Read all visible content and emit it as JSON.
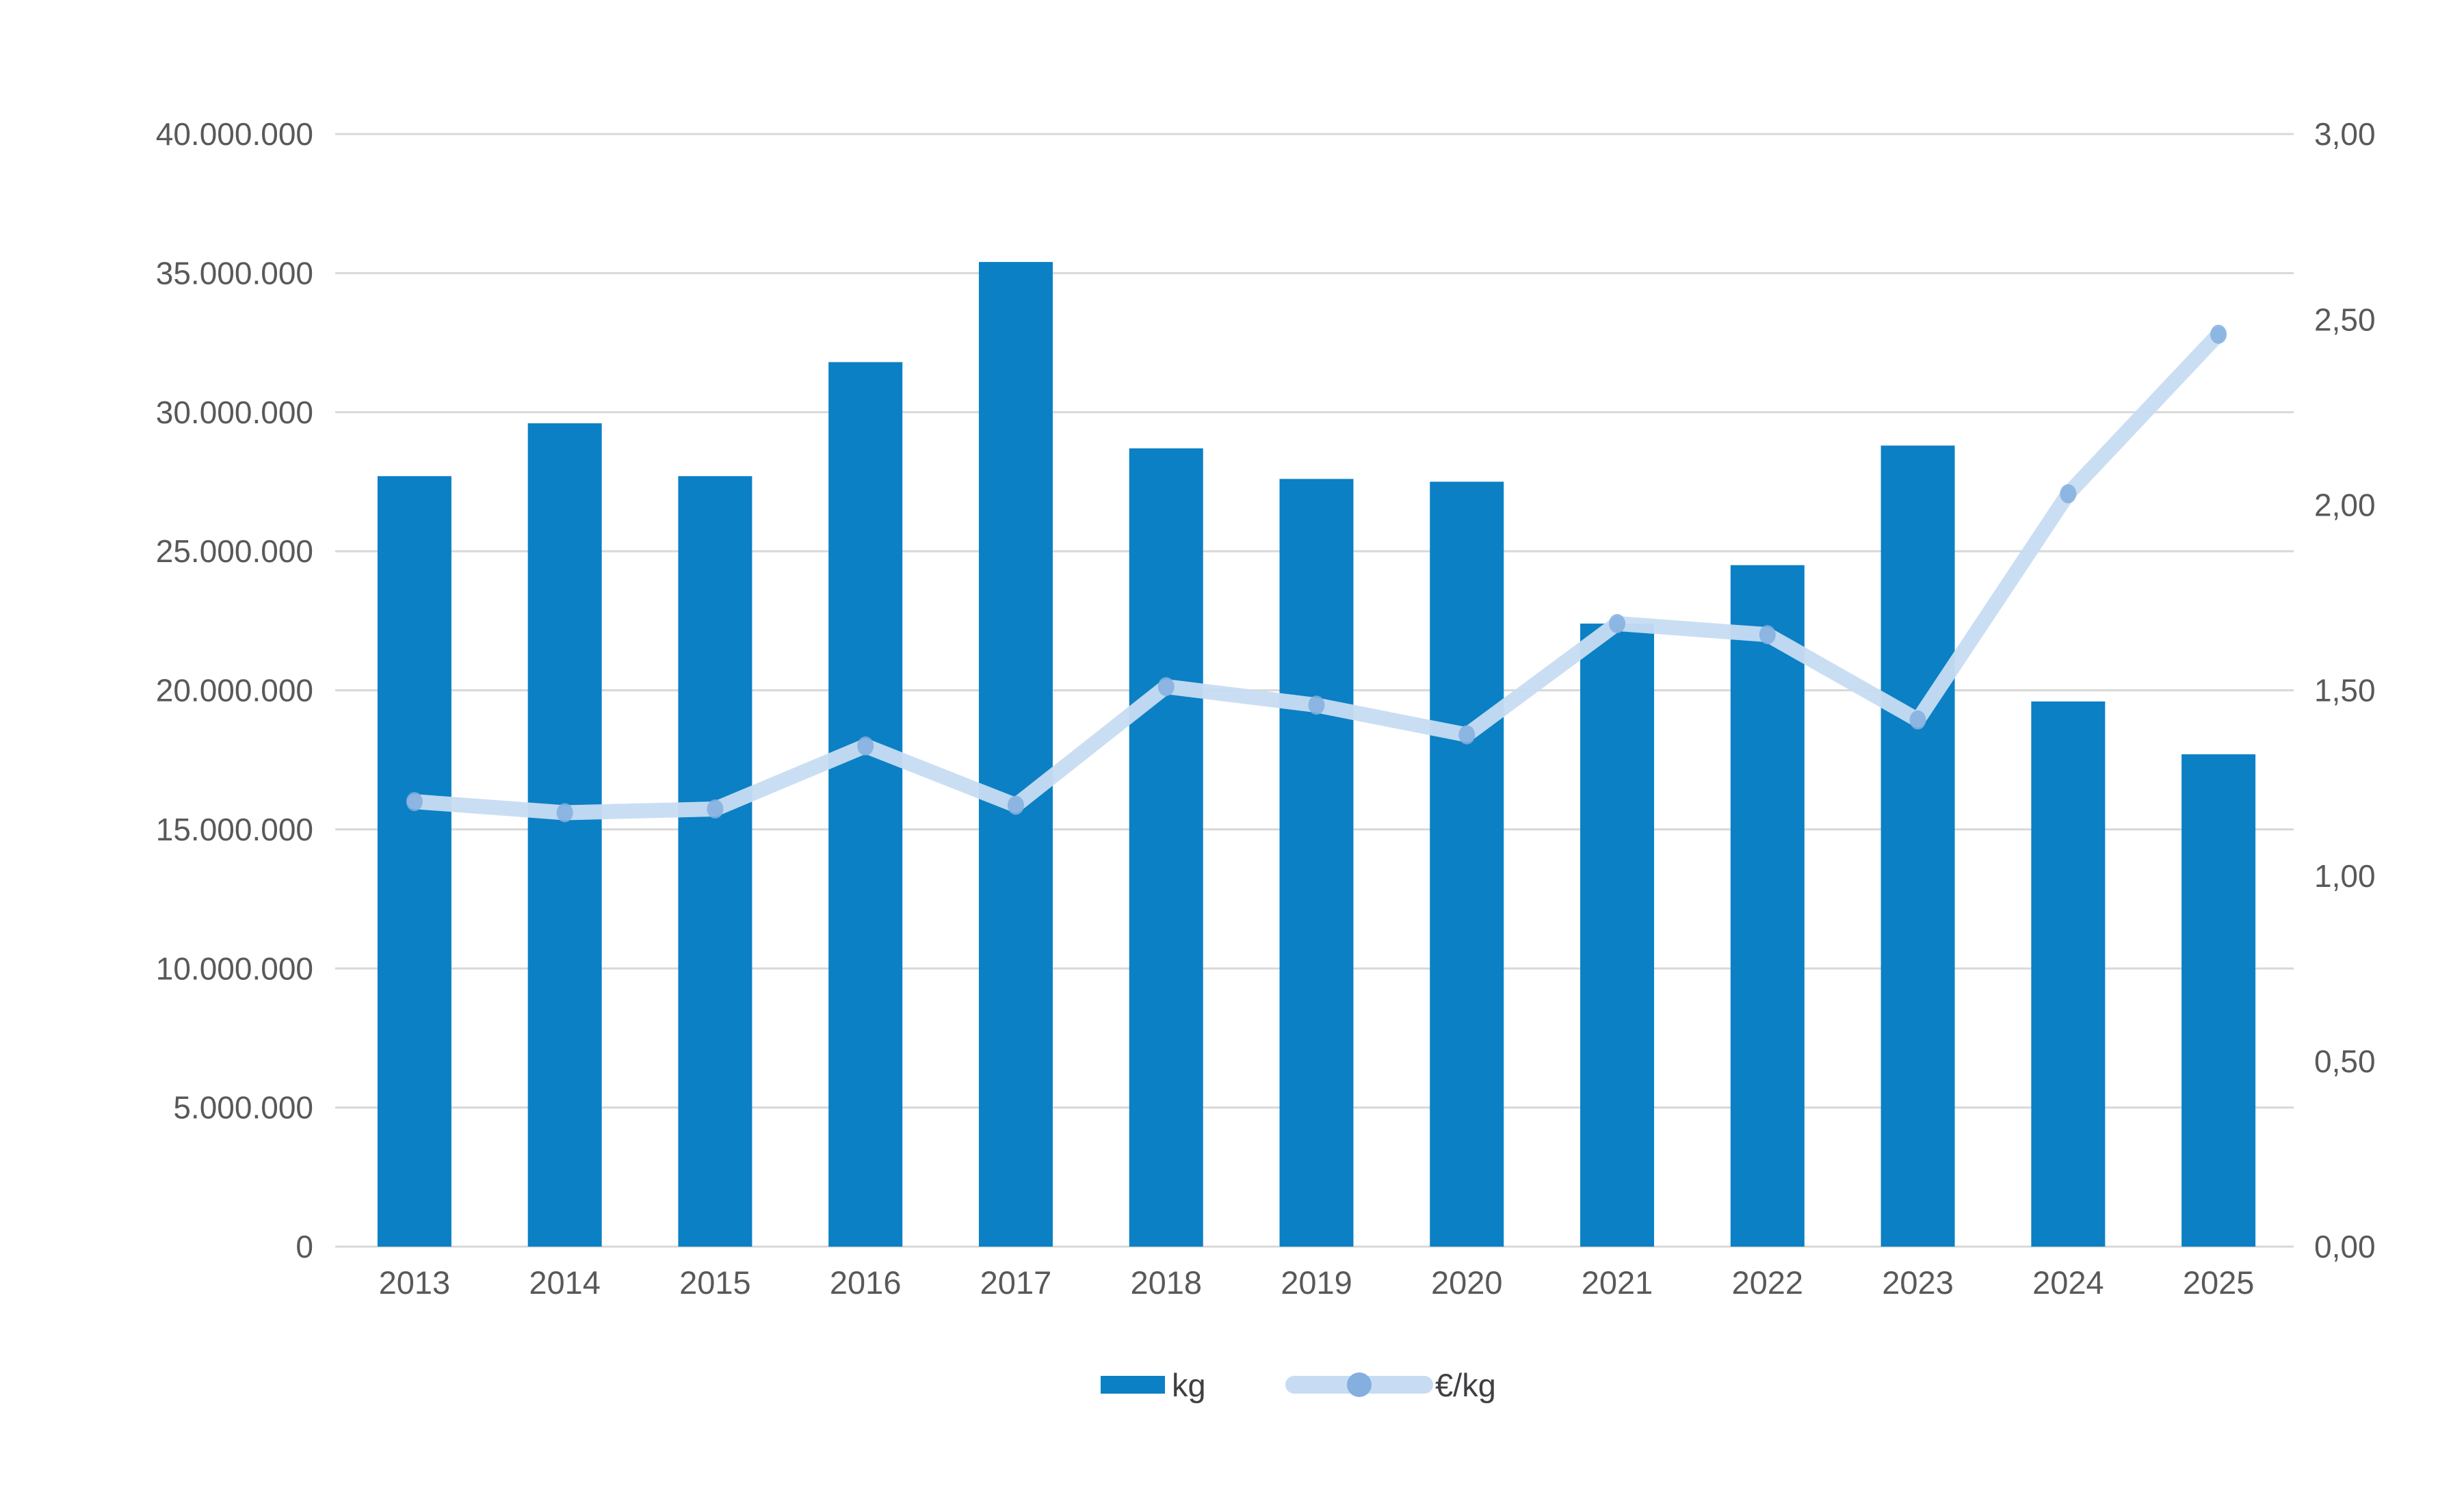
{
  "chart_data": {
    "type": "combo",
    "title": "",
    "categories": [
      "2013",
      "2014",
      "2015",
      "2016",
      "2017",
      "2018",
      "2019",
      "2020",
      "2021",
      "2022",
      "2023",
      "2024",
      "2025"
    ],
    "series": [
      {
        "name": "kg",
        "type": "bar",
        "axis": "left",
        "color": "#0b80c4",
        "values": [
          27700000,
          29600000,
          27700000,
          31800000,
          35400000,
          28700000,
          27600000,
          27500000,
          22400000,
          24500000,
          28800000,
          19600000,
          17700000
        ]
      },
      {
        "name": "€/kg",
        "type": "line",
        "axis": "right",
        "color": "#c7dcf2",
        "marker_color": "#84afdf",
        "values": [
          1.2,
          1.17,
          1.18,
          1.35,
          1.19,
          1.51,
          1.46,
          1.38,
          1.68,
          1.65,
          1.42,
          2.03,
          2.46
        ]
      }
    ],
    "left_axis": {
      "min": 0,
      "max": 40000000,
      "tick_step": 5000000,
      "tick_labels": [
        "0",
        "5.000.000",
        "10.000.000",
        "15.000.000",
        "20.000.000",
        "25.000.000",
        "30.000.000",
        "35.000.000",
        "40.000.000"
      ]
    },
    "right_axis": {
      "min": 0,
      "max": 3,
      "tick_step": 0.5,
      "tick_labels": [
        "0,00",
        "0,50",
        "1,00",
        "1,50",
        "2,00",
        "2,50",
        "3,00"
      ]
    },
    "grid": "horizontal-left-axis-only",
    "legend_position": "bottom",
    "legend": [
      "kg",
      "€/kg"
    ],
    "colors": {
      "bar": "#0b80c4",
      "line": "#c7dcf2",
      "marker": "#84afdf",
      "gridline": "#d8d8d8",
      "text": "#58595b",
      "background": "#ffffff"
    }
  }
}
